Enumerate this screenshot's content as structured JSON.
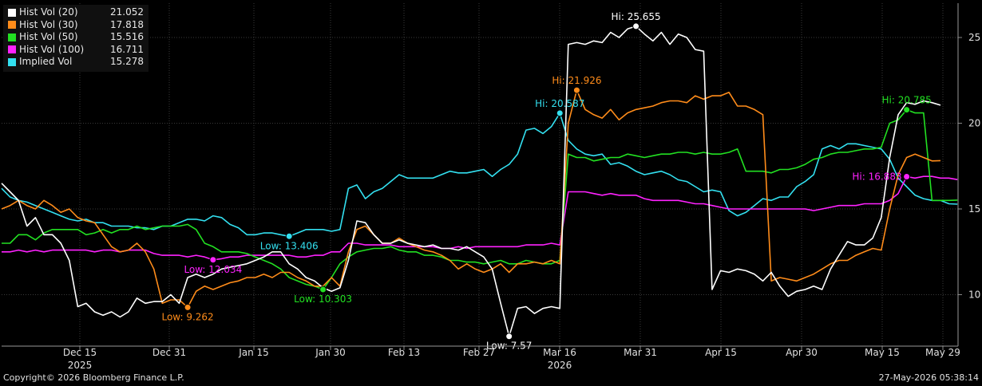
{
  "chart_data": {
    "type": "line",
    "x_ticks": [
      "Dec 15",
      "Dec 31",
      "Jan 15",
      "Jan 30",
      "Feb 13",
      "Feb 27",
      "Mar 16",
      "Mar 31",
      "Apr 15",
      "Apr 30",
      "May 15",
      "May 29"
    ],
    "year_labels": [
      {
        "at": "Dec 15",
        "text": "2025"
      },
      {
        "at": "Mar 16",
        "text": "2026"
      }
    ],
    "y_ticks": [
      10,
      15,
      20,
      25
    ],
    "ylim": [
      7.0,
      27.0
    ],
    "grid": true,
    "legend_position": "top-left",
    "series": [
      {
        "name": "Hist Vol (20)",
        "last": "21.052",
        "color": "#ffffff",
        "values": [
          16.5,
          16.0,
          15.5,
          14.0,
          14.5,
          13.5,
          13.5,
          13.0,
          12.0,
          9.3,
          9.5,
          9.0,
          8.8,
          9.0,
          8.7,
          9.0,
          9.8,
          9.5,
          9.6,
          9.6,
          10.0,
          9.5,
          11.0,
          11.2,
          11.0,
          11.2,
          11.5,
          11.6,
          11.7,
          11.8,
          12.0,
          12.2,
          12.5,
          12.5,
          11.8,
          11.5,
          11.0,
          10.8,
          10.4,
          10.2,
          10.4,
          12.0,
          14.3,
          14.2,
          13.5,
          13.0,
          13.0,
          13.2,
          13.0,
          12.9,
          12.8,
          12.9,
          12.7,
          12.7,
          12.6,
          12.8,
          12.5,
          12.2,
          11.5,
          9.5,
          7.57,
          9.2,
          9.3,
          8.9,
          9.2,
          9.3,
          9.2,
          24.6,
          24.7,
          24.6,
          24.8,
          24.7,
          25.3,
          25.0,
          25.5,
          25.655,
          25.2,
          24.8,
          25.3,
          24.6,
          25.2,
          25.0,
          24.3,
          24.2,
          10.3,
          11.4,
          11.3,
          11.5,
          11.4,
          11.2,
          10.8,
          11.3,
          10.5,
          9.9,
          10.2,
          10.3,
          10.5,
          10.3,
          11.5,
          12.3,
          13.1,
          12.9,
          12.9,
          13.3,
          14.5,
          18.0,
          20.5,
          21.2,
          21.1,
          21.3,
          21.2,
          21.052
        ]
      },
      {
        "name": "Hist Vol (30)",
        "last": "17.818",
        "color": "#ff8c1a",
        "values": [
          15.0,
          15.2,
          15.5,
          15.2,
          15.0,
          15.5,
          15.2,
          14.8,
          15.0,
          14.5,
          14.3,
          14.2,
          13.5,
          12.8,
          12.5,
          12.6,
          13.0,
          12.5,
          11.5,
          9.5,
          9.7,
          9.7,
          9.262,
          10.2,
          10.5,
          10.3,
          10.5,
          10.7,
          10.8,
          11.0,
          11.0,
          11.2,
          11.0,
          11.3,
          11.3,
          11.0,
          10.8,
          10.5,
          10.5,
          11.0,
          10.5,
          12.5,
          13.8,
          14.0,
          13.5,
          13.0,
          13.0,
          13.3,
          13.0,
          12.8,
          12.6,
          12.5,
          12.3,
          12.0,
          11.5,
          11.8,
          11.5,
          11.3,
          11.5,
          11.8,
          11.3,
          11.8,
          11.8,
          11.9,
          11.8,
          12.0,
          11.8,
          20.0,
          21.926,
          20.8,
          20.5,
          20.3,
          20.8,
          20.2,
          20.6,
          20.8,
          20.9,
          21.0,
          21.2,
          21.3,
          21.3,
          21.2,
          21.6,
          21.4,
          21.6,
          21.6,
          21.8,
          21.0,
          21.0,
          20.8,
          20.5,
          10.8,
          11.0,
          10.9,
          10.8,
          11.0,
          11.2,
          11.5,
          11.8,
          12.0,
          12.0,
          12.3,
          12.5,
          12.7,
          12.6,
          15.0,
          17.0,
          18.0,
          18.2,
          18.0,
          17.8,
          17.818
        ]
      },
      {
        "name": "Hist Vol (50)",
        "last": "15.516",
        "color": "#22e022",
        "values": [
          13.0,
          13.0,
          13.5,
          13.5,
          13.2,
          13.6,
          13.8,
          13.8,
          13.8,
          13.8,
          13.5,
          13.6,
          13.8,
          13.6,
          13.8,
          13.8,
          14.0,
          13.8,
          13.9,
          14.0,
          14.0,
          14.0,
          14.1,
          13.8,
          13.0,
          12.8,
          12.5,
          12.5,
          12.5,
          12.4,
          12.2,
          12.0,
          11.8,
          11.5,
          11.0,
          10.8,
          10.6,
          10.5,
          10.303,
          11.0,
          11.8,
          12.2,
          12.5,
          12.6,
          12.7,
          12.7,
          12.8,
          12.6,
          12.5,
          12.5,
          12.3,
          12.3,
          12.2,
          12.0,
          12.0,
          11.9,
          11.9,
          11.8,
          11.9,
          12.0,
          11.8,
          11.8,
          12.0,
          11.9,
          11.8,
          11.8,
          12.0,
          18.2,
          18.0,
          18.0,
          17.8,
          17.9,
          18.0,
          18.0,
          18.2,
          18.1,
          18.0,
          18.1,
          18.2,
          18.2,
          18.3,
          18.3,
          18.2,
          18.3,
          18.2,
          18.2,
          18.3,
          18.5,
          17.2,
          17.2,
          17.2,
          17.1,
          17.3,
          17.3,
          17.4,
          17.6,
          17.9,
          18.0,
          18.2,
          18.3,
          18.3,
          18.4,
          18.5,
          18.5,
          18.6,
          20.0,
          20.2,
          20.785,
          20.6,
          20.6,
          15.5,
          15.5,
          15.5,
          15.516
        ]
      },
      {
        "name": "Hist Vol (100)",
        "last": "16.711",
        "color": "#ff22ff",
        "values": [
          12.5,
          12.5,
          12.6,
          12.5,
          12.6,
          12.5,
          12.6,
          12.6,
          12.6,
          12.6,
          12.6,
          12.5,
          12.6,
          12.6,
          12.5,
          12.6,
          12.6,
          12.6,
          12.4,
          12.3,
          12.3,
          12.3,
          12.2,
          12.3,
          12.2,
          12.034,
          12.1,
          12.2,
          12.2,
          12.3,
          12.3,
          12.3,
          12.3,
          12.3,
          12.3,
          12.2,
          12.2,
          12.3,
          12.3,
          12.5,
          12.5,
          13.0,
          13.0,
          12.9,
          12.9,
          12.9,
          12.9,
          12.8,
          12.8,
          12.8,
          12.8,
          12.8,
          12.7,
          12.7,
          12.8,
          12.7,
          12.8,
          12.8,
          12.8,
          12.8,
          12.8,
          12.8,
          12.9,
          12.9,
          12.9,
          13.0,
          12.9,
          16.0,
          16.0,
          16.0,
          15.9,
          15.8,
          15.9,
          15.8,
          15.8,
          15.8,
          15.6,
          15.5,
          15.5,
          15.5,
          15.5,
          15.4,
          15.3,
          15.3,
          15.2,
          15.1,
          15.0,
          15.0,
          15.0,
          15.0,
          15.0,
          15.0,
          15.0,
          15.0,
          15.0,
          15.0,
          14.9,
          15.0,
          15.1,
          15.2,
          15.2,
          15.2,
          15.3,
          15.3,
          15.3,
          15.5,
          15.9,
          16.883,
          16.8,
          16.9,
          16.9,
          16.8,
          16.8,
          16.711
        ]
      },
      {
        "name": "Implied Vol",
        "last": "15.278",
        "color": "#33e0f0",
        "values": [
          16.2,
          15.7,
          15.5,
          15.4,
          15.2,
          15.0,
          14.8,
          14.6,
          14.4,
          14.3,
          14.4,
          14.2,
          14.2,
          14.0,
          14.0,
          14.0,
          13.9,
          13.9,
          13.8,
          14.0,
          14.0,
          14.2,
          14.4,
          14.4,
          14.3,
          14.6,
          14.5,
          14.1,
          13.9,
          13.5,
          13.5,
          13.6,
          13.6,
          13.5,
          13.406,
          13.6,
          13.8,
          13.8,
          13.8,
          13.7,
          13.8,
          16.2,
          16.4,
          15.6,
          16.0,
          16.2,
          16.6,
          17.0,
          16.8,
          16.8,
          16.8,
          16.8,
          17.0,
          17.2,
          17.1,
          17.1,
          17.2,
          17.3,
          16.9,
          17.3,
          17.6,
          18.2,
          19.6,
          19.7,
          19.4,
          19.8,
          20.587,
          19.0,
          18.5,
          18.2,
          18.1,
          18.2,
          17.6,
          17.7,
          17.5,
          17.2,
          17.0,
          17.1,
          17.2,
          17.0,
          16.7,
          16.6,
          16.3,
          16.0,
          16.1,
          16.0,
          14.9,
          14.6,
          14.8,
          15.2,
          15.6,
          15.5,
          15.7,
          15.7,
          16.3,
          16.6,
          17.0,
          18.5,
          18.7,
          18.5,
          18.8,
          18.8,
          18.7,
          18.6,
          18.5,
          17.9,
          16.8,
          16.3,
          15.8,
          15.6,
          15.5,
          15.5,
          15.3,
          15.278
        ]
      }
    ],
    "annotations": [
      {
        "series": "Hist Vol (20)",
        "text": "Hi: 25.655",
        "value": 25.655,
        "pos": "above"
      },
      {
        "series": "Hist Vol (20)",
        "text": "Low: 7.57",
        "value": 7.57,
        "pos": "below"
      },
      {
        "series": "Hist Vol (30)",
        "text": "Hi: 21.926",
        "value": 21.926,
        "pos": "above"
      },
      {
        "series": "Hist Vol (30)",
        "text": "Low: 9.262",
        "value": 9.262,
        "pos": "below"
      },
      {
        "series": "Hist Vol (50)",
        "text": "Hi: 20.785",
        "value": 20.785,
        "pos": "above"
      },
      {
        "series": "Hist Vol (50)",
        "text": "Low: 10.303",
        "value": 10.303,
        "pos": "below"
      },
      {
        "series": "Hist Vol (100)",
        "text": "Hi: 16.883",
        "value": 16.883,
        "pos": "left"
      },
      {
        "series": "Hist Vol (100)",
        "text": "Low: 12.034",
        "value": 12.034,
        "pos": "below"
      },
      {
        "series": "Implied Vol",
        "text": "Hi: 20.587",
        "value": 20.587,
        "pos": "above"
      },
      {
        "series": "Implied Vol",
        "text": "Low: 13.406",
        "value": 13.406,
        "pos": "below"
      }
    ]
  },
  "footer": {
    "copyright": "Copyright© 2026 Bloomberg Finance L.P.",
    "timestamp": "27-May-2026 05:38:14"
  }
}
